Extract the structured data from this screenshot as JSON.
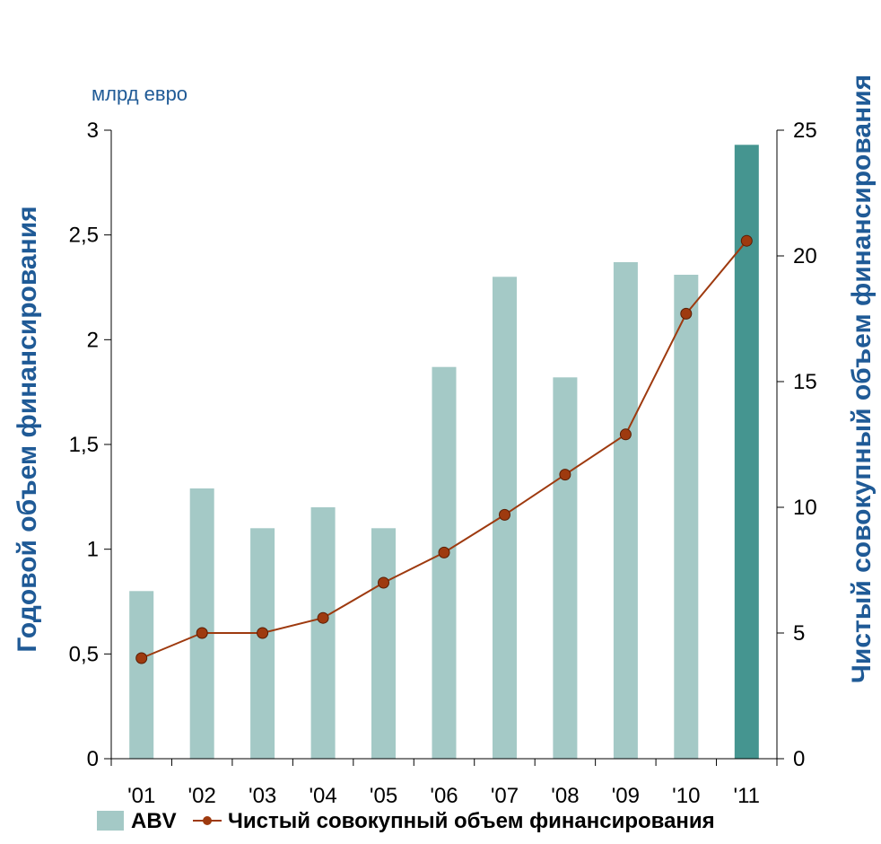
{
  "chart_data": {
    "type": "bar",
    "unit_label": "млрд евро",
    "categories": [
      "'01",
      "'02",
      "'03",
      "'04",
      "'05",
      "'06",
      "'07",
      "'08",
      "'09",
      "'10",
      "'11"
    ],
    "series": [
      {
        "name": "ABV",
        "type": "bar",
        "axis": "left",
        "values": [
          0.8,
          1.29,
          1.1,
          1.2,
          1.1,
          1.87,
          2.3,
          1.82,
          2.37,
          2.31,
          2.93
        ],
        "color": "#a4c9c6",
        "highlight_color": "#459590",
        "highlight_index": 10
      },
      {
        "name": "Чистый совокупный объем финансирования",
        "type": "line",
        "axis": "right",
        "values": [
          4.0,
          5.0,
          5.0,
          5.6,
          7.0,
          8.2,
          9.7,
          11.3,
          12.9,
          17.7,
          20.6
        ],
        "color": "#9e3a0f"
      }
    ],
    "ylabel": "Годовой объем финансирования",
    "ylim": [
      0,
      3
    ],
    "yticks": [
      0,
      0.5,
      1,
      1.5,
      2,
      2.5,
      3
    ],
    "ytick_labels": [
      "0",
      "0,5",
      "1",
      "1,5",
      "2",
      "2,5",
      "3"
    ],
    "y2label": "Чистый совокупный объем финансирования",
    "y2lim": [
      0,
      25
    ],
    "y2ticks": [
      0,
      5,
      10,
      15,
      20,
      25
    ],
    "y2tick_labels": [
      "0",
      "5",
      "10",
      "15",
      "20",
      "25"
    ],
    "grid": false,
    "legend": "bottom"
  }
}
